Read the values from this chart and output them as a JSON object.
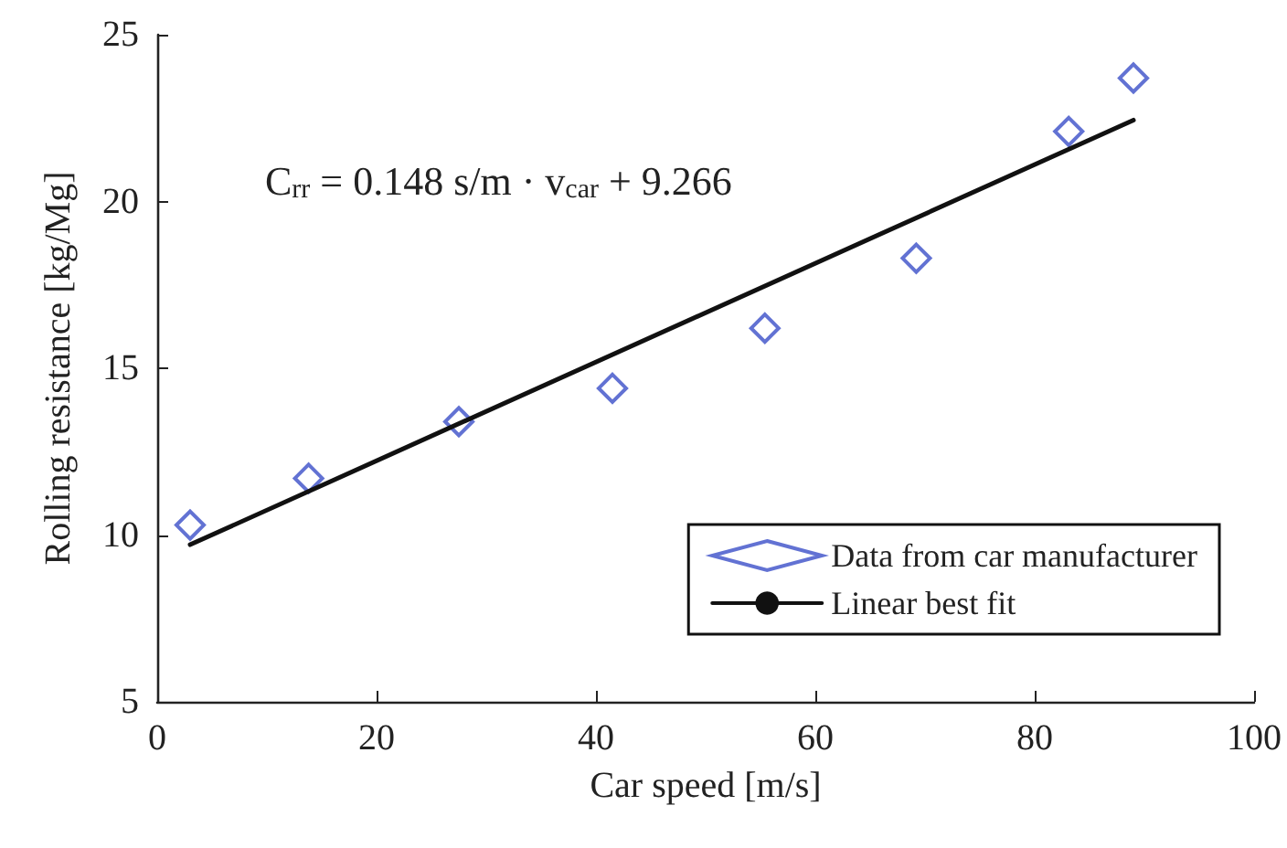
{
  "chart_data": {
    "type": "scatter",
    "xlabel": "Car speed [m/s]",
    "ylabel": "Rolling resistance [kg/Mg]",
    "xlim": [
      0,
      100
    ],
    "xticks": [
      0,
      20,
      40,
      60,
      80,
      100
    ],
    "ylim": [
      5,
      25
    ],
    "yticks": [
      5,
      10,
      15,
      20,
      25
    ],
    "grid": false,
    "legend": "bottom right",
    "annotations": [
      "C$_{rr}$ = 0.148 s/m · v$_{car}$ + 9.266"
    ],
    "series": [
      {
        "name": "Data from car manufacturer",
        "marker": "diamond",
        "color": "#3b4fc8",
        "x": [
          3.0,
          13.8,
          27.5,
          41.5,
          55.4,
          69.2,
          83.1,
          89.0
        ],
        "values": [
          10.3,
          11.7,
          13.4,
          14.4,
          16.2,
          18.3,
          22.1,
          23.7
        ]
      },
      {
        "name": "Linear best fit",
        "type": "line",
        "marker": "none",
        "line_style": "solid",
        "color": "#111111",
        "x": [
          3,
          89
        ],
        "values": [
          9.71,
          22.44
        ]
      }
    ]
  }
}
